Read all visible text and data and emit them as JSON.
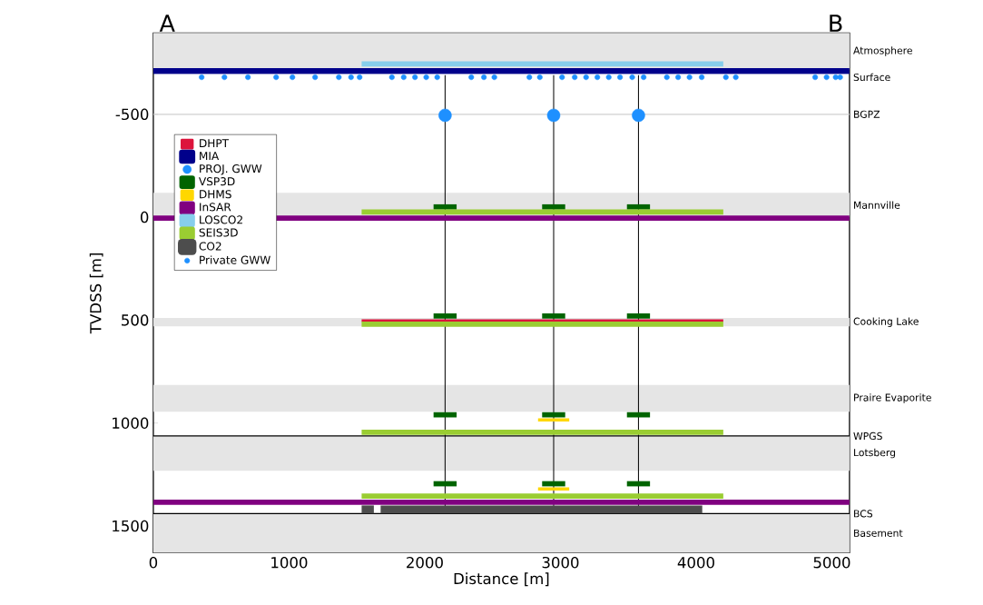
{
  "chart_data": {
    "type": "line",
    "xlabel": "Distance [m]",
    "ylabel": "TVDSS [m]",
    "xlim": [
      0,
      5130
    ],
    "ylim": [
      1630,
      -895
    ],
    "xticks": [
      0,
      1000,
      2000,
      3000,
      4000,
      5000
    ],
    "yticks": [
      -500,
      0,
      500,
      1000,
      1500
    ],
    "annotations": [
      "A",
      "B",
      "Surface"
    ],
    "legend": "top left",
    "bands": [
      {
        "axis": "y",
        "from": -895,
        "to": -717,
        "color": "#e5e5e5",
        "label": "Atmosphere"
      },
      {
        "axis": "y",
        "from": -118,
        "to": 0,
        "color": "#e5e5e5",
        "label": "Mannville"
      },
      {
        "axis": "y",
        "from": 490,
        "to": 530,
        "color": "#e5e5e5",
        "label": "Cooking Lake"
      },
      {
        "axis": "y",
        "from": 815,
        "to": 945,
        "color": "#e5e5e5",
        "label": "Praire Evaporite"
      },
      {
        "axis": "y",
        "from": 1063,
        "to": 1232,
        "color": "#e5e5e5",
        "label": "Lotsberg"
      },
      {
        "axis": "y",
        "from": 1440,
        "to": 1630,
        "color": "#e5e5e5",
        "label": "Basement"
      }
    ],
    "ref_lines": [
      {
        "axis": "y",
        "value": -500,
        "color": "#d0d0d0",
        "label": "BGPZ"
      },
      {
        "axis": "y",
        "value": 1063,
        "color": "#000000",
        "label": "WPGS"
      },
      {
        "axis": "y",
        "value": 1440,
        "color": "#000000",
        "label": "BCS"
      }
    ],
    "series": [
      {
        "color": "#000000",
        "x": [
          2150,
          2150
        ],
        "values": [
          -690,
          1440
        ]
      },
      {
        "color": "#000000",
        "x": [
          2950,
          2950
        ],
        "values": [
          -690,
          1440
        ]
      },
      {
        "color": "#000000",
        "x": [
          3575,
          3575
        ],
        "values": [
          -690,
          1440
        ]
      },
      {
        "name": "DHPT",
        "color": "#dc143c",
        "x": [
          1535,
          4200
        ],
        "values": [
          502,
          502
        ]
      },
      {
        "name": "MIA",
        "color": "#00008b",
        "x": [
          0,
          5130
        ],
        "values": [
          -710,
          -710
        ]
      },
      {
        "type": "scatter",
        "name": "PROJ. GWW",
        "color": "#1e90ff",
        "marker": "circle",
        "x": [
          2150,
          2950,
          3575
        ],
        "values": [
          -495,
          -495,
          -495
        ]
      },
      {
        "name": "VSP3D",
        "color": "#006400",
        "x": [
          2065,
          2235
        ],
        "values": [
          -50,
          -50
        ]
      },
      {
        "color": "#006400",
        "x": [
          2865,
          3035
        ],
        "values": [
          -50,
          -50
        ]
      },
      {
        "color": "#006400",
        "x": [
          3490,
          3660
        ],
        "values": [
          -50,
          -50
        ]
      },
      {
        "color": "#006400",
        "x": [
          2065,
          2235
        ],
        "values": [
          480,
          480
        ]
      },
      {
        "color": "#006400",
        "x": [
          2865,
          3035
        ],
        "values": [
          480,
          480
        ]
      },
      {
        "color": "#006400",
        "x": [
          3490,
          3660
        ],
        "values": [
          480,
          480
        ]
      },
      {
        "color": "#006400",
        "x": [
          2065,
          2235
        ],
        "values": [
          960,
          960
        ]
      },
      {
        "color": "#006400",
        "x": [
          2865,
          3035
        ],
        "values": [
          960,
          960
        ]
      },
      {
        "color": "#006400",
        "x": [
          3490,
          3660
        ],
        "values": [
          960,
          960
        ]
      },
      {
        "color": "#006400",
        "x": [
          2065,
          2235
        ],
        "values": [
          1295,
          1295
        ]
      },
      {
        "color": "#006400",
        "x": [
          2865,
          3035
        ],
        "values": [
          1295,
          1295
        ]
      },
      {
        "color": "#006400",
        "x": [
          3490,
          3660
        ],
        "values": [
          1295,
          1295
        ]
      },
      {
        "name": "DHMS",
        "color": "#ffd700",
        "x": [
          2835,
          3065
        ],
        "values": [
          985,
          985
        ]
      },
      {
        "color": "#ffd700",
        "x": [
          2835,
          3065
        ],
        "values": [
          1320,
          1320
        ]
      },
      {
        "name": "InSAR",
        "color": "#800080",
        "x": [
          0,
          5130
        ],
        "values": [
          5,
          5
        ]
      },
      {
        "color": "#800080",
        "x": [
          0,
          5130
        ],
        "values": [
          1385,
          1385
        ]
      },
      {
        "name": "LOSCO2",
        "color": "#87ceeb",
        "x": [
          1535,
          4200
        ],
        "values": [
          -745,
          -745
        ]
      },
      {
        "name": "SEIS3D",
        "color": "#9acd32",
        "x": [
          1535,
          4200
        ],
        "values": [
          -25,
          -25
        ]
      },
      {
        "color": "#9acd32",
        "x": [
          1535,
          4200
        ],
        "values": [
          520,
          520
        ]
      },
      {
        "color": "#9acd32",
        "x": [
          1535,
          4200
        ],
        "values": [
          1045,
          1045
        ]
      },
      {
        "color": "#9acd32",
        "x": [
          1535,
          4200
        ],
        "values": [
          1355,
          1355
        ]
      },
      {
        "name": "CO2",
        "color": "#4d4d4d",
        "x": [
          1535,
          1625
        ],
        "values": [
          1420,
          1420
        ]
      },
      {
        "color": "#4d4d4d",
        "x": [
          1675,
          4045
        ],
        "values": [
          1420,
          1420
        ]
      },
      {
        "type": "scatter",
        "name": "Private GWW",
        "color": "#1e90ff",
        "marker": "circle",
        "x": [
          356,
          524,
          697,
          905,
          1025,
          1192,
          1367,
          1457,
          1520,
          1758,
          1845,
          1928,
          2011,
          2092,
          2343,
          2436,
          2513,
          2771,
          2848,
          3012,
          3105,
          3189,
          3272,
          3356,
          3439,
          3529,
          3613,
          3784,
          3867,
          3951,
          4041,
          4219,
          4292,
          4877,
          4961,
          5028,
          5061
        ],
        "values": [
          -680,
          -680,
          -680,
          -680,
          -680,
          -680,
          -680,
          -680,
          -680,
          -680,
          -680,
          -680,
          -680,
          -680,
          -680,
          -680,
          -680,
          -680,
          -680,
          -680,
          -680,
          -680,
          -680,
          -680,
          -680,
          -680,
          -680,
          -680,
          -680,
          -680,
          -680,
          -680,
          -680,
          -680,
          -680,
          -680,
          -680
        ]
      }
    ]
  }
}
